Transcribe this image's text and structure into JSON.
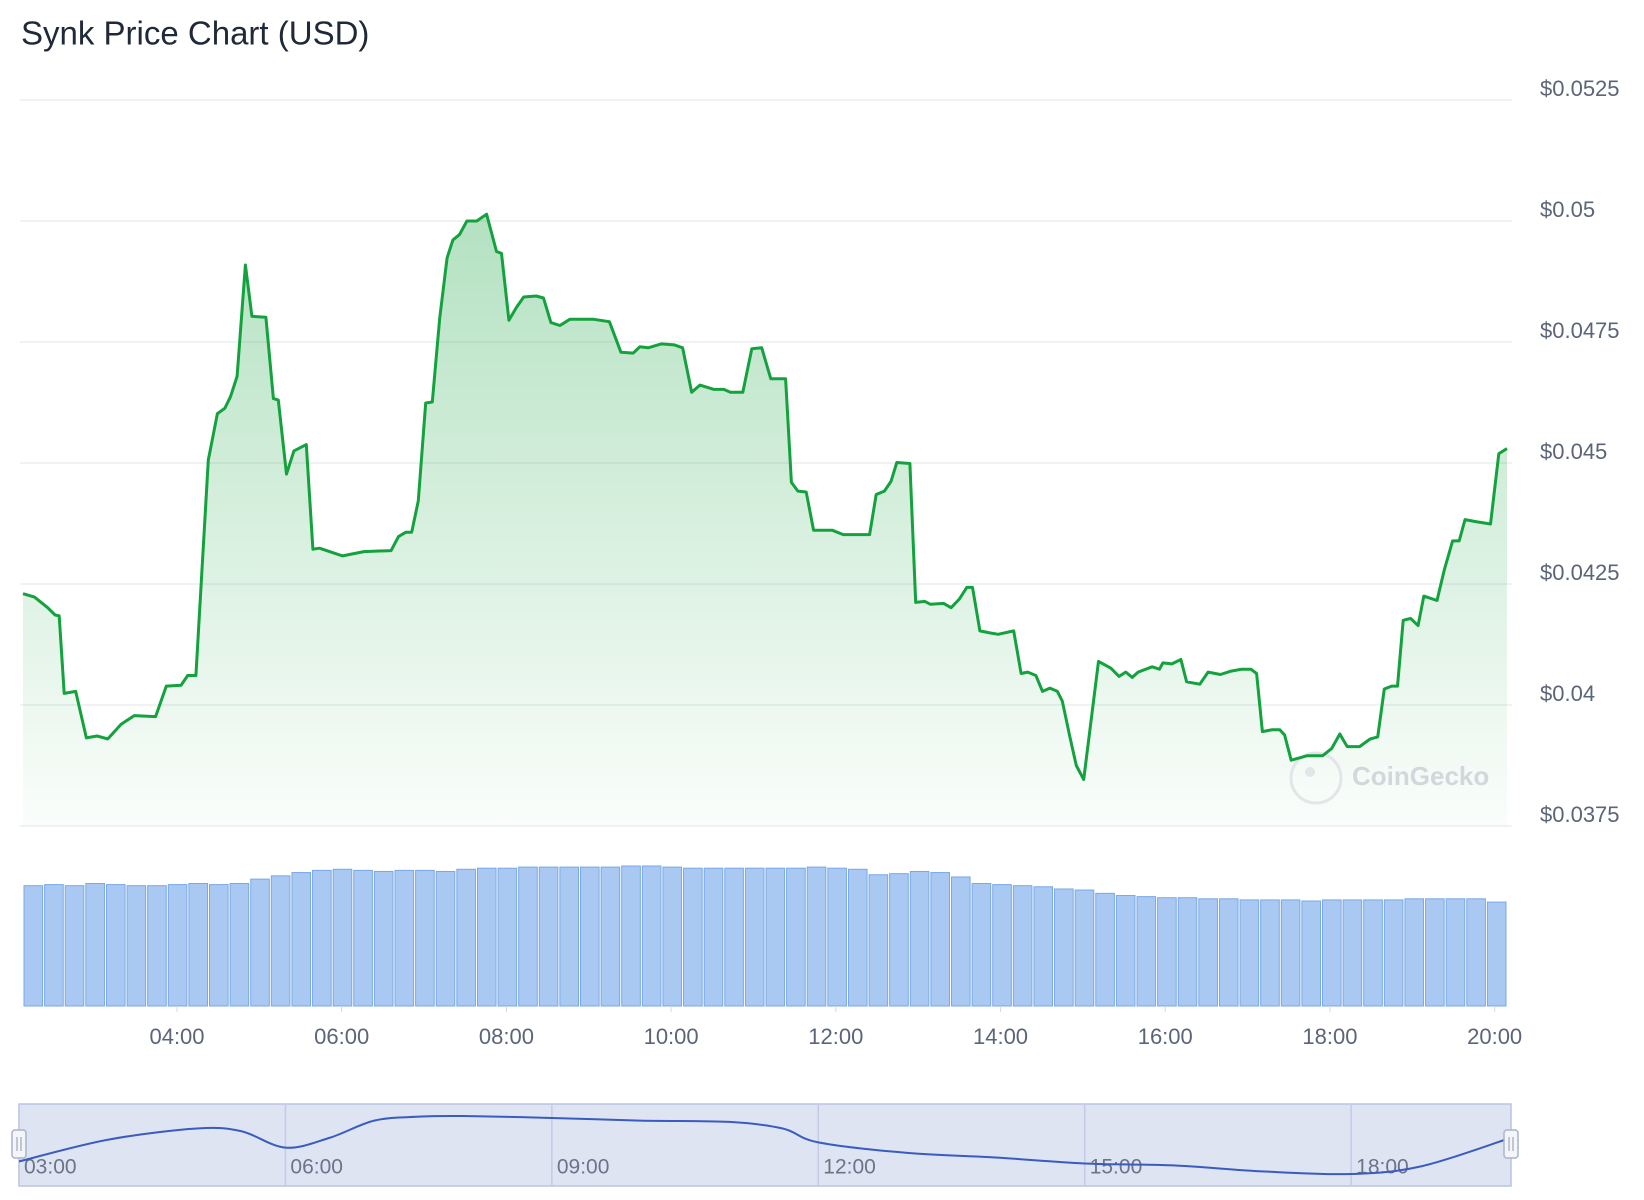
{
  "chart_data": {
    "type": "line",
    "title": "Synk Price Chart (USD)",
    "watermark": "CoinGecko",
    "color": "#13a23d",
    "grid": true,
    "xlim": [
      2.13,
      20.15
    ],
    "xticks": [
      {
        "value": 4,
        "label": "04:00"
      },
      {
        "value": 6,
        "label": "06:00"
      },
      {
        "value": 8,
        "label": "08:00"
      },
      {
        "value": 10,
        "label": "10:00"
      },
      {
        "value": 12,
        "label": "12:00"
      },
      {
        "value": 14,
        "label": "14:00"
      },
      {
        "value": 16,
        "label": "16:00"
      },
      {
        "value": 18,
        "label": "18:00"
      },
      {
        "value": 20,
        "label": "20:00"
      }
    ],
    "ylim": [
      0.0375,
      0.0525
    ],
    "yticks": [
      {
        "value": 0.0375,
        "label": "$0.0375"
      },
      {
        "value": 0.04,
        "label": "$0.04"
      },
      {
        "value": 0.0425,
        "label": "$0.0425"
      },
      {
        "value": 0.045,
        "label": "$0.045"
      },
      {
        "value": 0.0475,
        "label": "$0.0475"
      },
      {
        "value": 0.05,
        "label": "$0.05"
      },
      {
        "value": 0.0525,
        "label": "$0.0525"
      }
    ],
    "x": [
      2.13,
      2.27,
      2.43,
      2.52,
      2.57,
      2.63,
      2.77,
      2.9,
      3.03,
      3.16,
      3.32,
      3.48,
      3.74,
      3.87,
      4.05,
      4.13,
      4.23,
      4.38,
      4.49,
      4.58,
      4.65,
      4.73,
      4.83,
      4.91,
      5.08,
      5.17,
      5.23,
      5.33,
      5.42,
      5.57,
      5.65,
      5.73,
      6.01,
      6.27,
      6.6,
      6.69,
      6.78,
      6.85,
      6.93,
      7.02,
      7.1,
      7.19,
      7.28,
      7.35,
      7.43,
      7.52,
      7.64,
      7.76,
      7.88,
      7.94,
      8.03,
      8.12,
      8.21,
      8.36,
      8.45,
      8.54,
      8.65,
      8.77,
      9.06,
      9.25,
      9.39,
      9.54,
      9.62,
      9.72,
      9.88,
      10.04,
      10.14,
      10.25,
      10.35,
      10.52,
      10.64,
      10.72,
      10.87,
      10.98,
      11.1,
      11.21,
      11.39,
      11.46,
      11.54,
      11.64,
      11.73,
      11.96,
      12.09,
      12.41,
      12.49,
      12.59,
      12.67,
      12.74,
      12.9,
      12.97,
      13.08,
      13.15,
      13.31,
      13.4,
      13.5,
      13.59,
      13.66,
      13.75,
      13.87,
      13.97,
      14.16,
      14.25,
      14.33,
      14.43,
      14.51,
      14.6,
      14.69,
      14.75,
      14.84,
      14.92,
      15.01,
      15.19,
      15.34,
      15.44,
      15.52,
      15.6,
      15.67,
      15.84,
      15.93,
      15.97,
      16.08,
      16.19,
      16.26,
      16.42,
      16.52,
      16.67,
      16.8,
      16.93,
      17.04,
      17.11,
      17.18,
      17.3,
      17.39,
      17.45,
      17.53,
      17.72,
      17.91,
      18.02,
      18.12,
      18.21,
      18.36,
      18.49,
      18.58,
      18.66,
      18.75,
      18.82,
      18.89,
      18.98,
      19.07,
      19.14,
      19.3,
      19.39,
      19.49,
      19.57,
      19.64,
      19.77,
      19.95,
      20.05,
      20.15
    ],
    "values": [
      0.0423,
      0.04223,
      0.04201,
      0.04186,
      0.04184,
      0.04024,
      0.04028,
      0.03932,
      0.03936,
      0.0393,
      0.0396,
      0.03978,
      0.03976,
      0.04039,
      0.04041,
      0.04061,
      0.04061,
      0.04506,
      0.04602,
      0.04613,
      0.04637,
      0.04679,
      0.04909,
      0.04803,
      0.04801,
      0.04633,
      0.0463,
      0.04477,
      0.04525,
      0.04538,
      0.04322,
      0.04324,
      0.04308,
      0.04317,
      0.04319,
      0.04348,
      0.04357,
      0.04357,
      0.04422,
      0.04624,
      0.04626,
      0.04799,
      0.04924,
      0.04961,
      0.04972,
      0.05,
      0.05,
      0.05014,
      0.04937,
      0.04933,
      0.04795,
      0.04821,
      0.04843,
      0.04845,
      0.04841,
      0.0479,
      0.04784,
      0.04797,
      0.04797,
      0.04792,
      0.04729,
      0.04727,
      0.0474,
      0.04738,
      0.04746,
      0.04744,
      0.04738,
      0.04646,
      0.04661,
      0.04652,
      0.04652,
      0.04646,
      0.04646,
      0.04736,
      0.04738,
      0.04674,
      0.04674,
      0.0446,
      0.04442,
      0.0444,
      0.04361,
      0.04361,
      0.04352,
      0.04352,
      0.04435,
      0.04442,
      0.04462,
      0.04501,
      0.04499,
      0.04212,
      0.04214,
      0.04208,
      0.0421,
      0.04201,
      0.04219,
      0.04243,
      0.04243,
      0.04153,
      0.04149,
      0.04146,
      0.04153,
      0.04065,
      0.04068,
      0.04061,
      0.04028,
      0.04035,
      0.04028,
      0.04008,
      0.03936,
      0.03875,
      0.03846,
      0.0409,
      0.04076,
      0.04059,
      0.04068,
      0.04057,
      0.04068,
      0.04079,
      0.04074,
      0.04087,
      0.04085,
      0.04094,
      0.04048,
      0.04043,
      0.04068,
      0.04063,
      0.0407,
      0.04074,
      0.04074,
      0.04065,
      0.03945,
      0.03949,
      0.03949,
      0.03938,
      0.03886,
      0.03895,
      0.03895,
      0.0391,
      0.0394,
      0.03914,
      0.03914,
      0.0393,
      0.03934,
      0.04033,
      0.04039,
      0.04039,
      0.04175,
      0.04179,
      0.04164,
      0.04225,
      0.04216,
      0.0428,
      0.04339,
      0.04339,
      0.04383,
      0.04379,
      0.04374,
      0.04519,
      0.0453
    ],
    "volume": {
      "color": "#a9c9f2",
      "values": [
        110,
        111,
        110,
        112,
        111,
        110,
        110,
        111,
        112,
        111,
        112,
        116,
        119,
        122,
        124,
        125,
        124,
        123,
        124,
        124,
        123,
        125,
        126,
        126,
        127,
        127,
        127,
        127,
        127,
        128,
        128,
        127,
        126,
        126,
        126,
        126,
        126,
        126,
        127,
        126,
        125,
        120,
        121,
        123,
        122,
        118,
        112,
        111,
        110,
        109,
        107,
        106,
        103,
        101,
        100,
        99,
        99,
        98,
        98,
        97,
        97,
        97,
        96,
        97,
        97,
        97,
        97,
        98,
        98,
        98,
        98,
        95
      ]
    },
    "navigator": {
      "color": "#3a5bbf",
      "x": [
        3.0,
        4.0,
        5.0,
        5.5,
        6.0,
        6.5,
        7.0,
        7.5,
        8.0,
        9.0,
        10.0,
        11.0,
        11.6,
        12.0,
        13.0,
        14.0,
        15.0,
        16.0,
        17.0,
        18.0,
        18.8,
        19.8
      ],
      "values": [
        0.0411,
        0.0444,
        0.0461,
        0.0457,
        0.0432,
        0.0447,
        0.0473,
        0.0479,
        0.048,
        0.0477,
        0.0473,
        0.0471,
        0.0461,
        0.044,
        0.0424,
        0.0417,
        0.0408,
        0.0405,
        0.0396,
        0.0392,
        0.0404,
        0.0447
      ],
      "xticks": [
        {
          "value": 3,
          "label": "03:00"
        },
        {
          "value": 6,
          "label": "06:00"
        },
        {
          "value": 9,
          "label": "09:00"
        },
        {
          "value": 12,
          "label": "12:00"
        },
        {
          "value": 15,
          "label": "15:00"
        },
        {
          "value": 18,
          "label": "18:00"
        }
      ]
    }
  }
}
